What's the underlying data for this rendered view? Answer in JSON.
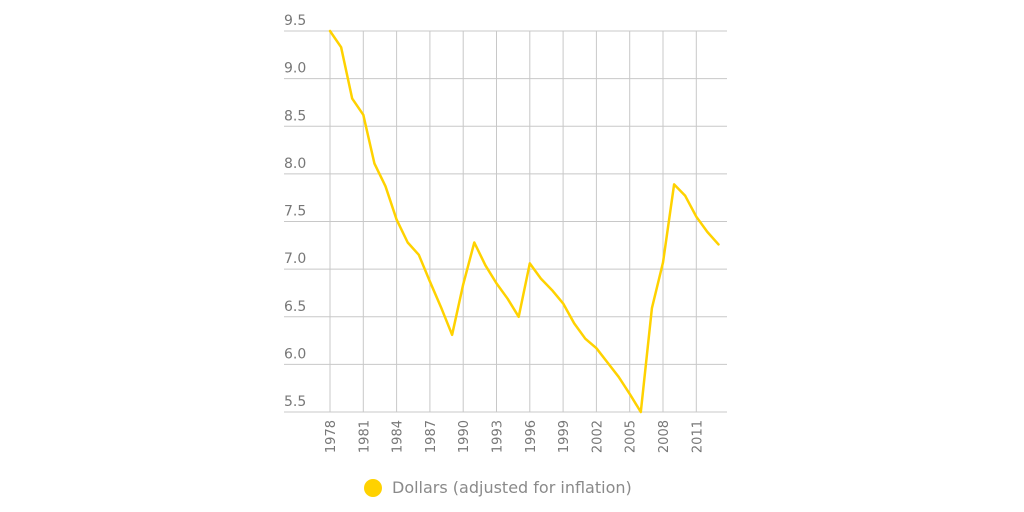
{
  "chart_data": {
    "type": "line",
    "title": "",
    "xlabel": "",
    "ylabel": "",
    "ylim": [
      5.5,
      9.5
    ],
    "yticks": [
      "5.5",
      "6.0",
      "6.5",
      "7.0",
      "7.5",
      "8.0",
      "8.5",
      "9.0",
      "9.5"
    ],
    "xticks": [
      "1978",
      "1981",
      "1984",
      "1987",
      "1990",
      "1993",
      "1996",
      "1999",
      "2002",
      "2005",
      "2008",
      "2011"
    ],
    "grid": true,
    "legend_position": "bottom",
    "x": [
      1978,
      1979,
      1980,
      1981,
      1982,
      1983,
      1984,
      1985,
      1986,
      1987,
      1988,
      1989,
      1990,
      1991,
      1992,
      1993,
      1994,
      1995,
      1996,
      1997,
      1998,
      1999,
      2000,
      2001,
      2002,
      2003,
      2004,
      2005,
      2006,
      2007,
      2008,
      2009,
      2010,
      2011,
      2012,
      2013
    ],
    "series": [
      {
        "name": "Dollars (adjusted for inflation)",
        "color": "#ffd200",
        "values": [
          9.5,
          9.33,
          8.79,
          8.62,
          8.11,
          7.87,
          7.52,
          7.28,
          7.15,
          6.87,
          6.6,
          6.31,
          6.84,
          7.28,
          7.04,
          6.85,
          6.69,
          6.5,
          7.06,
          6.9,
          6.78,
          6.64,
          6.43,
          6.27,
          6.17,
          6.02,
          5.87,
          5.69,
          5.5,
          6.59,
          7.07,
          7.89,
          7.77,
          7.55,
          7.39,
          7.26
        ]
      }
    ]
  },
  "legend": {
    "label": "Dollars (adjusted for inflation)",
    "color": "#ffd200"
  }
}
